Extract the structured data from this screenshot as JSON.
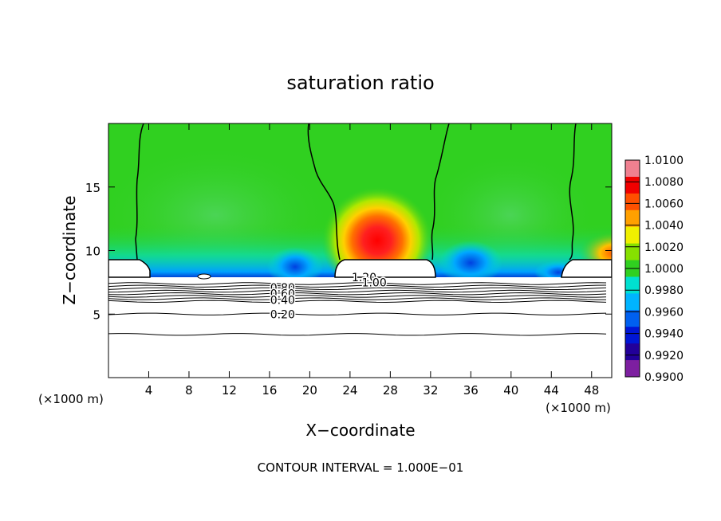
{
  "chart_data": {
    "type": "heatmap",
    "title": "saturation ratio",
    "xlabel": "X−coordinate",
    "ylabel": "Z−coordinate",
    "x_unit_left": "(×1000 m)",
    "x_unit_right": "(×1000 m)",
    "xlim": [
      0,
      50
    ],
    "ylim": [
      0,
      20
    ],
    "x_ticks": [
      4,
      8,
      12,
      16,
      20,
      24,
      28,
      32,
      36,
      40,
      44,
      48
    ],
    "x_tick_labels": [
      "4",
      "8",
      "12",
      "16",
      "20",
      "24",
      "28",
      "32",
      "36",
      "40",
      "44",
      "48"
    ],
    "y_ticks": [
      5,
      10,
      15
    ],
    "y_tick_labels": [
      "5",
      "10",
      "15"
    ],
    "footnote": "CONTOUR INTERVAL = 1.000E−01",
    "colorbar": {
      "levels": [
        0.99,
        0.992,
        0.994,
        0.996,
        0.998,
        1.0,
        1.002,
        1.004,
        1.006,
        1.008,
        1.01
      ],
      "labels": [
        "0.9900",
        "0.9920",
        "0.9940",
        "0.9960",
        "0.9980",
        "1.0000",
        "1.0020",
        "1.0040",
        "1.0060",
        "1.0080",
        "1.0100"
      ],
      "colors": [
        "#7d1fa0",
        "#22009a",
        "#0016d6",
        "#0060f0",
        "#00b4ff",
        "#00e0d0",
        "#30d020",
        "#86e000",
        "#f0f000",
        "#ffa000",
        "#ff5000",
        "#f00000",
        "#f08090"
      ]
    },
    "contour_labels": [
      {
        "text": "1.20",
        "x": 25.4,
        "y": 7.9
      },
      {
        "text": "1.00",
        "x": 26.4,
        "y": 7.5
      },
      {
        "text": "0.80",
        "x": 17.3,
        "y": 7.1
      },
      {
        "text": "0.60",
        "x": 17.3,
        "y": 6.6
      },
      {
        "text": "0.40",
        "x": 17.3,
        "y": 6.1
      },
      {
        "text": "0.20",
        "x": 17.3,
        "y": 5.0
      }
    ],
    "contour_levels_below_cloud": [
      7.4,
      7.2,
      7.0,
      6.8,
      6.6,
      6.4,
      6.2,
      6.0,
      5.0,
      3.4
    ]
  }
}
